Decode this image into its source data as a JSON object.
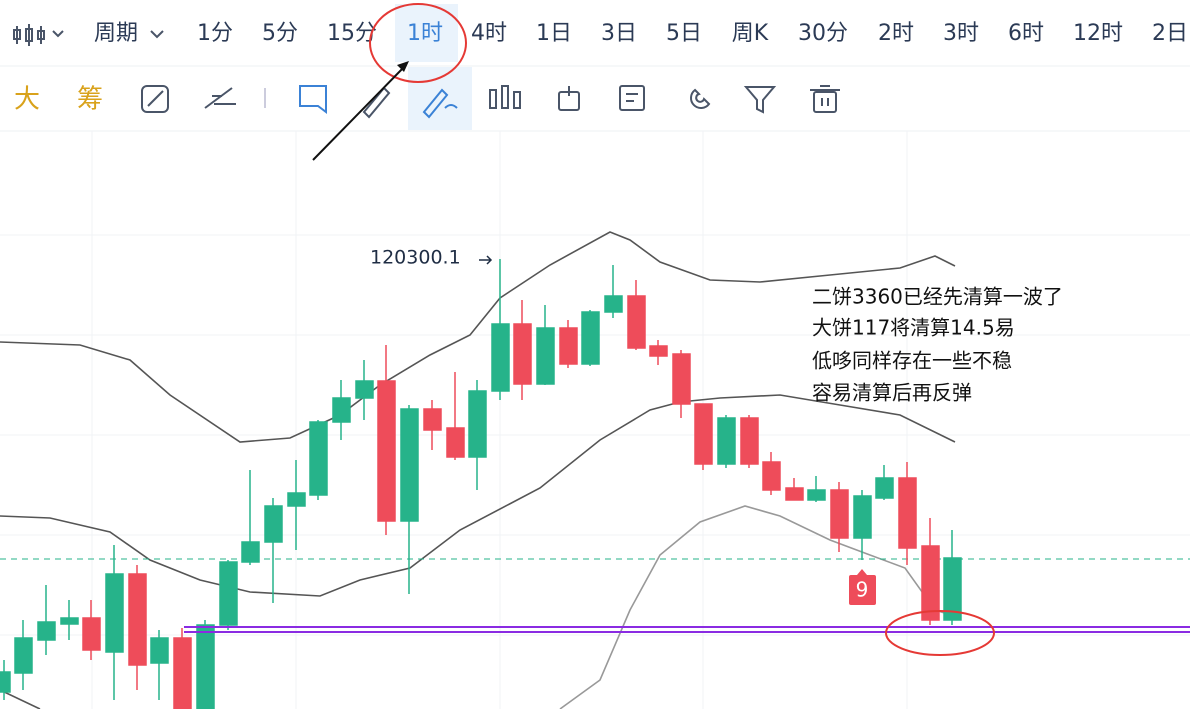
{
  "toolbar": {
    "period_menu": "周期",
    "periods": [
      "1分",
      "5分",
      "15分",
      "1时",
      "4时",
      "1日",
      "3日",
      "5日",
      "周K",
      "30分",
      "2时",
      "3时",
      "6时",
      "12时",
      "2日"
    ],
    "tools": [
      "大",
      "筹"
    ]
  },
  "chart": {
    "high_label": "120300.1",
    "marker": "9",
    "annotation": [
      "二饼3360已经先清算一波了",
      "大饼117将清算14.5易",
      "低哆同样存在一些不稳",
      "容易清算后再反弹"
    ]
  }
}
